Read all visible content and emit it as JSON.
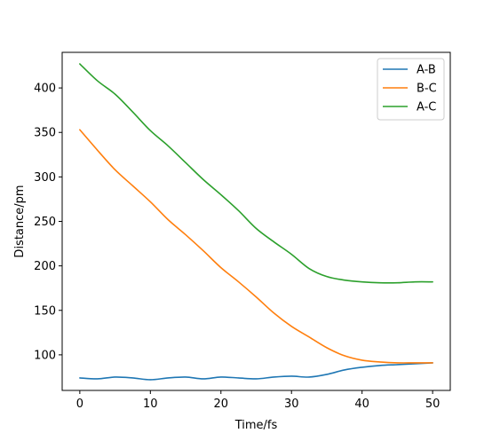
{
  "chart_data": {
    "type": "line",
    "title": "",
    "xlabel": "Time/fs",
    "ylabel": "Distance/pm",
    "xlim": [
      -2.5,
      52.5
    ],
    "ylim": [
      60,
      440
    ],
    "xticks": [
      0,
      10,
      20,
      30,
      40,
      50
    ],
    "yticks": [
      100,
      150,
      200,
      250,
      300,
      350,
      400
    ],
    "grid": false,
    "legend_position": "top-right",
    "x": [
      0,
      2.5,
      5,
      7.5,
      10,
      12.5,
      15,
      17.5,
      20,
      22.5,
      25,
      27.5,
      30,
      32.5,
      35,
      37.5,
      40,
      42.5,
      45,
      47.5,
      50
    ],
    "series": [
      {
        "name": "A-B",
        "color": "#1f77b4",
        "values": [
          74,
          73,
          75,
          74,
          72,
          74,
          75,
          73,
          75,
          74,
          73,
          75,
          76,
          75,
          78,
          83,
          86,
          88,
          89,
          90,
          91
        ]
      },
      {
        "name": "B-C",
        "color": "#ff7f0e",
        "values": [
          353,
          330,
          308,
          290,
          272,
          252,
          235,
          217,
          198,
          182,
          165,
          147,
          132,
          120,
          108,
          99,
          94,
          92,
          91,
          91,
          91
        ]
      },
      {
        "name": "A-C",
        "color": "#2ca02c",
        "values": [
          427,
          408,
          393,
          373,
          352,
          335,
          316,
          297,
          280,
          262,
          242,
          227,
          213,
          197,
          188,
          184,
          182,
          181,
          181,
          182,
          182
        ]
      }
    ]
  }
}
